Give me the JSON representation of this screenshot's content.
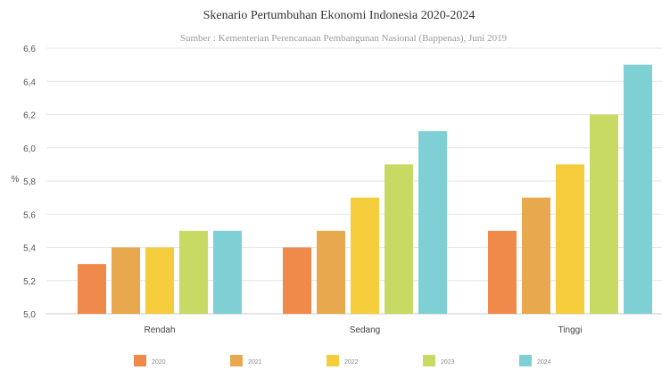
{
  "chart_data": {
    "type": "bar",
    "title": "Skenario Pertumbuhan Ekonomi Indonesia 2020-2024",
    "subtitle": "Sumber : Kementerian Perencanaan Pembangunan Nasional (Bappenas), Juni 2019",
    "xlabel": "",
    "ylabel": "%",
    "ylim": [
      5.0,
      6.6
    ],
    "yticks": [
      "5,0",
      "5,2",
      "5,4",
      "5,6",
      "5,8",
      "6,0",
      "6,2",
      "6,4",
      "6,6"
    ],
    "categories": [
      "Rendah",
      "Sedang",
      "Tinggi"
    ],
    "series": [
      {
        "name": "2020",
        "color": "#f08a4b",
        "values": [
          5.3,
          5.4,
          5.5
        ]
      },
      {
        "name": "2021",
        "color": "#e8a94e",
        "values": [
          5.4,
          5.5,
          5.7
        ]
      },
      {
        "name": "2022",
        "color": "#f5cd3c",
        "values": [
          5.4,
          5.7,
          5.9
        ]
      },
      {
        "name": "2023",
        "color": "#c8d964",
        "values": [
          5.5,
          5.9,
          6.2
        ]
      },
      {
        "name": "2024",
        "color": "#7fd0d5",
        "values": [
          5.5,
          6.1,
          6.5
        ]
      }
    ],
    "grid": true,
    "legend": "bottom"
  }
}
